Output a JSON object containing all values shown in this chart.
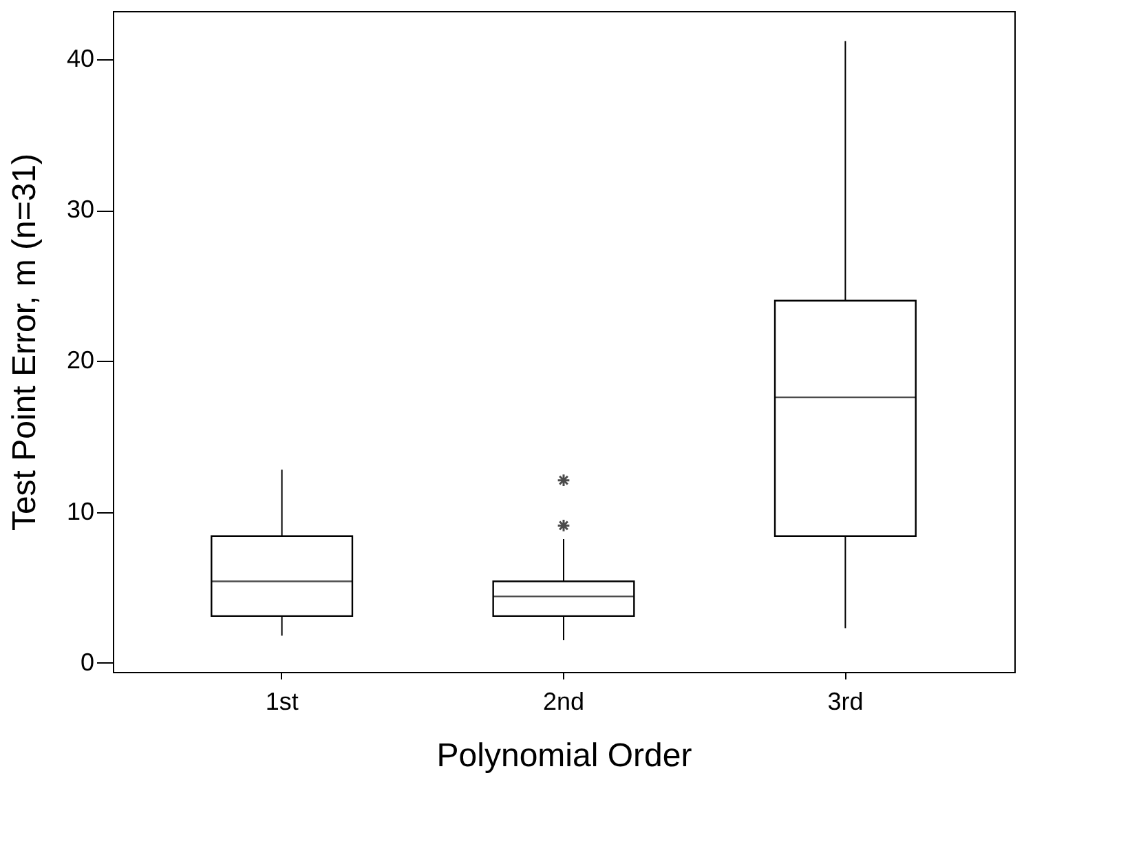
{
  "chart_data": {
    "type": "box",
    "xlabel": "Polynomial Order",
    "ylabel": "Test Point Error, m (n=31)",
    "categories": [
      "1st",
      "2nd",
      "3rd"
    ],
    "boxes": [
      {
        "low": 1.8,
        "q1": 3.1,
        "median": 5.4,
        "q3": 8.4,
        "high": 12.8
      },
      {
        "low": 1.5,
        "q1": 3.1,
        "median": 4.4,
        "q3": 5.4,
        "high": 8.2,
        "outliers": [
          9.1,
          12.1
        ]
      },
      {
        "low": 2.3,
        "q1": 8.4,
        "median": 17.6,
        "q3": 24.0,
        "high": 41.2
      }
    ],
    "ylim": [
      -0.6,
      43.2
    ],
    "yticks": [
      0,
      10,
      20,
      30,
      40
    ]
  }
}
